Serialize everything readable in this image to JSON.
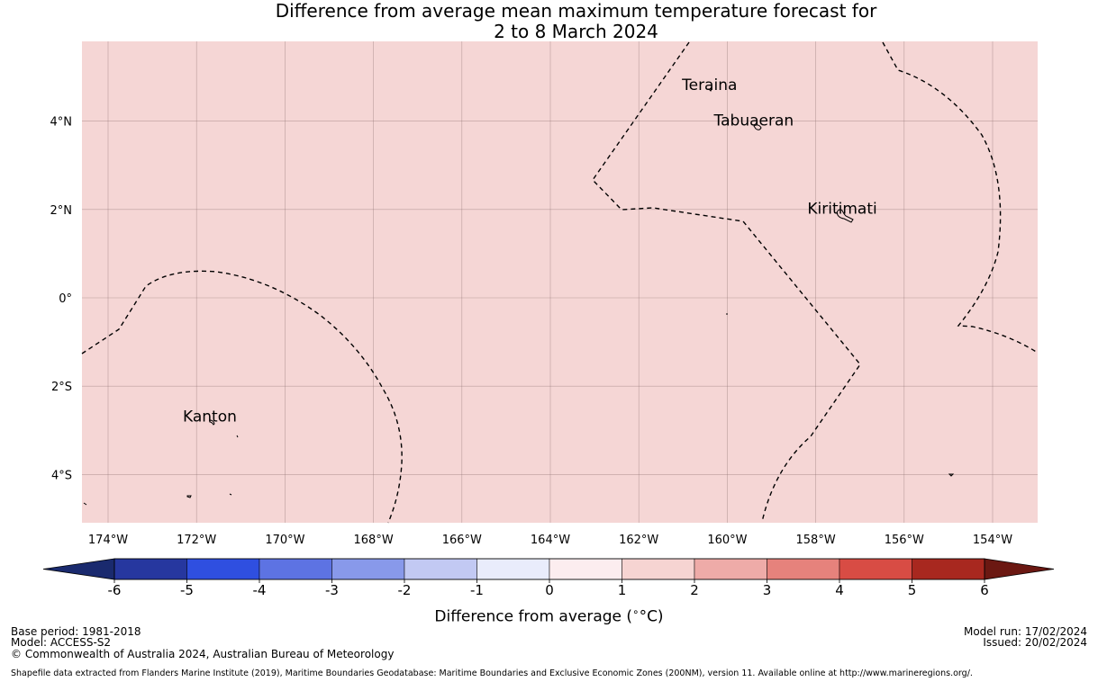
{
  "title": {
    "line1": "Difference from average mean maximum temperature forecast for",
    "line2": "2 to 8 March 2024"
  },
  "map": {
    "background_color": "#f5d6d5",
    "lon_ticks": [
      "174°W",
      "172°W",
      "170°W",
      "168°W",
      "166°W",
      "164°W",
      "162°W",
      "160°W",
      "158°W",
      "156°W",
      "154°W"
    ],
    "lat_ticks": [
      "4°N",
      "2°N",
      "0°",
      "2°S",
      "4°S"
    ],
    "places": [
      {
        "name": "Teraina",
        "lon": -160.4,
        "lat": 4.7
      },
      {
        "name": "Tabuaeran",
        "lon": -159.4,
        "lat": 3.9
      },
      {
        "name": "Kiritimati",
        "lon": -157.4,
        "lat": 1.9
      },
      {
        "name": "Kanton",
        "lon": -171.7,
        "lat": -2.8
      }
    ]
  },
  "colorbar": {
    "title": "Difference from average (",
    "title_unit": "°C)",
    "ticks": [
      "-6",
      "-5",
      "-4",
      "-3",
      "-2",
      "-1",
      "0",
      "1",
      "2",
      "3",
      "4",
      "5",
      "6"
    ],
    "colors": [
      "#26379f",
      "#2f4fe0",
      "#5d73e3",
      "#8899ea",
      "#c2c9f3",
      "#e9ecfb",
      "#fcedef",
      "#f6d4d2",
      "#eeaba8",
      "#e6827c",
      "#d84c44",
      "#a8281f"
    ],
    "under_color": "#1a2a6e",
    "over_color": "#6b1812"
  },
  "footer": {
    "base_period": "Base period: 1981-2018",
    "model": "Model: ACCESS-S2",
    "copyright": "© Commonwealth of Australia 2024, Australian Bureau of Meteorology",
    "shapefile": "Shapefile data extracted from Flanders Marine Institute (2019), Maritime Boundaries Geodatabase: Maritime Boundaries and Exclusive Economic Zones (200NM), version 11. Available online at http://www.marineregions.org/.",
    "model_run": "Model run: 17/02/2024",
    "issued": "Issued: 20/02/2024"
  }
}
